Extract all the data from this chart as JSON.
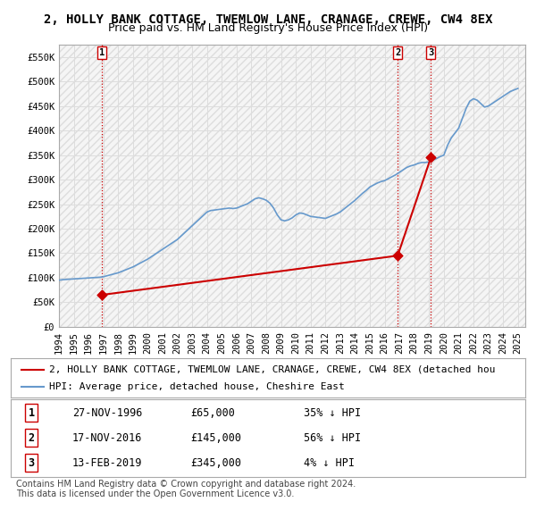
{
  "title": "2, HOLLY BANK COTTAGE, TWEMLOW LANE, CRANAGE, CREWE, CW4 8EX",
  "subtitle": "Price paid vs. HM Land Registry's House Price Index (HPI)",
  "ylim": [
    0,
    575000
  ],
  "yticks": [
    0,
    50000,
    100000,
    150000,
    200000,
    250000,
    300000,
    350000,
    400000,
    450000,
    500000,
    550000
  ],
  "ytick_labels": [
    "£0",
    "£50K",
    "£100K",
    "£150K",
    "£200K",
    "£250K",
    "£300K",
    "£350K",
    "£400K",
    "£450K",
    "£500K",
    "£550K"
  ],
  "xlim_start": 1994.0,
  "xlim_end": 2025.5,
  "xtick_years": [
    1994,
    1995,
    1996,
    1997,
    1998,
    1999,
    2000,
    2001,
    2002,
    2003,
    2004,
    2005,
    2006,
    2007,
    2008,
    2009,
    2010,
    2011,
    2012,
    2013,
    2014,
    2015,
    2016,
    2017,
    2018,
    2019,
    2020,
    2021,
    2022,
    2023,
    2024,
    2025
  ],
  "sales": [
    {
      "label": "1",
      "date_num": 1996.91,
      "price": 65000,
      "pct": "35%",
      "date_str": "27-NOV-1996"
    },
    {
      "label": "2",
      "date_num": 2016.88,
      "price": 145000,
      "pct": "56%",
      "date_str": "17-NOV-2016"
    },
    {
      "label": "3",
      "date_num": 2019.12,
      "price": 345000,
      "pct": "4%",
      "date_str": "13-FEB-2019"
    }
  ],
  "hpi_color": "#6699cc",
  "sale_color": "#cc0000",
  "hpi_line": {
    "x": [
      1994.0,
      1994.25,
      1994.5,
      1994.75,
      1995.0,
      1995.25,
      1995.5,
      1995.75,
      1996.0,
      1996.25,
      1996.5,
      1996.75,
      1997.0,
      1997.25,
      1997.5,
      1997.75,
      1998.0,
      1998.25,
      1998.5,
      1998.75,
      1999.0,
      1999.25,
      1999.5,
      1999.75,
      2000.0,
      2000.25,
      2000.5,
      2000.75,
      2001.0,
      2001.25,
      2001.5,
      2001.75,
      2002.0,
      2002.25,
      2002.5,
      2002.75,
      2003.0,
      2003.25,
      2003.5,
      2003.75,
      2004.0,
      2004.25,
      2004.5,
      2004.75,
      2005.0,
      2005.25,
      2005.5,
      2005.75,
      2006.0,
      2006.25,
      2006.5,
      2006.75,
      2007.0,
      2007.25,
      2007.5,
      2007.75,
      2008.0,
      2008.25,
      2008.5,
      2008.75,
      2009.0,
      2009.25,
      2009.5,
      2009.75,
      2010.0,
      2010.25,
      2010.5,
      2010.75,
      2011.0,
      2011.25,
      2011.5,
      2011.75,
      2012.0,
      2012.25,
      2012.5,
      2012.75,
      2013.0,
      2013.25,
      2013.5,
      2013.75,
      2014.0,
      2014.25,
      2014.5,
      2014.75,
      2015.0,
      2015.25,
      2015.5,
      2015.75,
      2016.0,
      2016.25,
      2016.5,
      2016.75,
      2017.0,
      2017.25,
      2017.5,
      2017.75,
      2018.0,
      2018.25,
      2018.5,
      2018.75,
      2019.0,
      2019.25,
      2019.5,
      2019.75,
      2020.0,
      2020.25,
      2020.5,
      2020.75,
      2021.0,
      2021.25,
      2021.5,
      2021.75,
      2022.0,
      2022.25,
      2022.5,
      2022.75,
      2023.0,
      2023.25,
      2023.5,
      2023.75,
      2024.0,
      2024.25,
      2024.5,
      2024.75,
      2025.0
    ],
    "y": [
      95000,
      96000,
      96500,
      97000,
      97500,
      98000,
      98500,
      99000,
      99500,
      100000,
      100500,
      101000,
      102000,
      104000,
      106000,
      108000,
      110000,
      113000,
      116000,
      119000,
      122000,
      126000,
      130000,
      134000,
      138000,
      143000,
      148000,
      153000,
      158000,
      163000,
      168000,
      173000,
      178000,
      185000,
      192000,
      199000,
      206000,
      213000,
      220000,
      227000,
      234000,
      237000,
      238000,
      239000,
      240000,
      241000,
      242000,
      241000,
      242000,
      245000,
      248000,
      251000,
      256000,
      261000,
      263000,
      261000,
      258000,
      252000,
      242000,
      228000,
      218000,
      216000,
      218000,
      222000,
      228000,
      232000,
      231000,
      228000,
      225000,
      224000,
      223000,
      222000,
      221000,
      224000,
      227000,
      230000,
      234000,
      240000,
      246000,
      252000,
      258000,
      265000,
      272000,
      278000,
      285000,
      289000,
      293000,
      296000,
      298000,
      302000,
      306000,
      310000,
      315000,
      320000,
      325000,
      328000,
      330000,
      333000,
      335000,
      335000,
      336000,
      340000,
      343000,
      347000,
      350000,
      370000,
      385000,
      395000,
      405000,
      425000,
      445000,
      460000,
      465000,
      462000,
      455000,
      448000,
      450000,
      455000,
      460000,
      465000,
      470000,
      475000,
      480000,
      483000,
      486000
    ]
  },
  "legend_label_sale": "2, HOLLY BANK COTTAGE, TWEMLOW LANE, CRANAGE, CREWE, CW4 8EX (detached hou",
  "legend_label_hpi": "HPI: Average price, detached house, Cheshire East",
  "table_data": [
    [
      "1",
      "27-NOV-1996",
      "£65,000",
      "35% ↓ HPI"
    ],
    [
      "2",
      "17-NOV-2016",
      "£145,000",
      "56% ↓ HPI"
    ],
    [
      "3",
      "13-FEB-2019",
      "£345,000",
      "4% ↓ HPI"
    ]
  ],
  "footer": "Contains HM Land Registry data © Crown copyright and database right 2024.\nThis data is licensed under the Open Government Licence v3.0.",
  "bg_color": "#ffffff",
  "grid_color": "#dddddd",
  "hatch_color": "#e8e8e8",
  "title_fontsize": 10,
  "subtitle_fontsize": 9,
  "tick_fontsize": 7.5,
  "legend_fontsize": 8,
  "table_fontsize": 8.5
}
